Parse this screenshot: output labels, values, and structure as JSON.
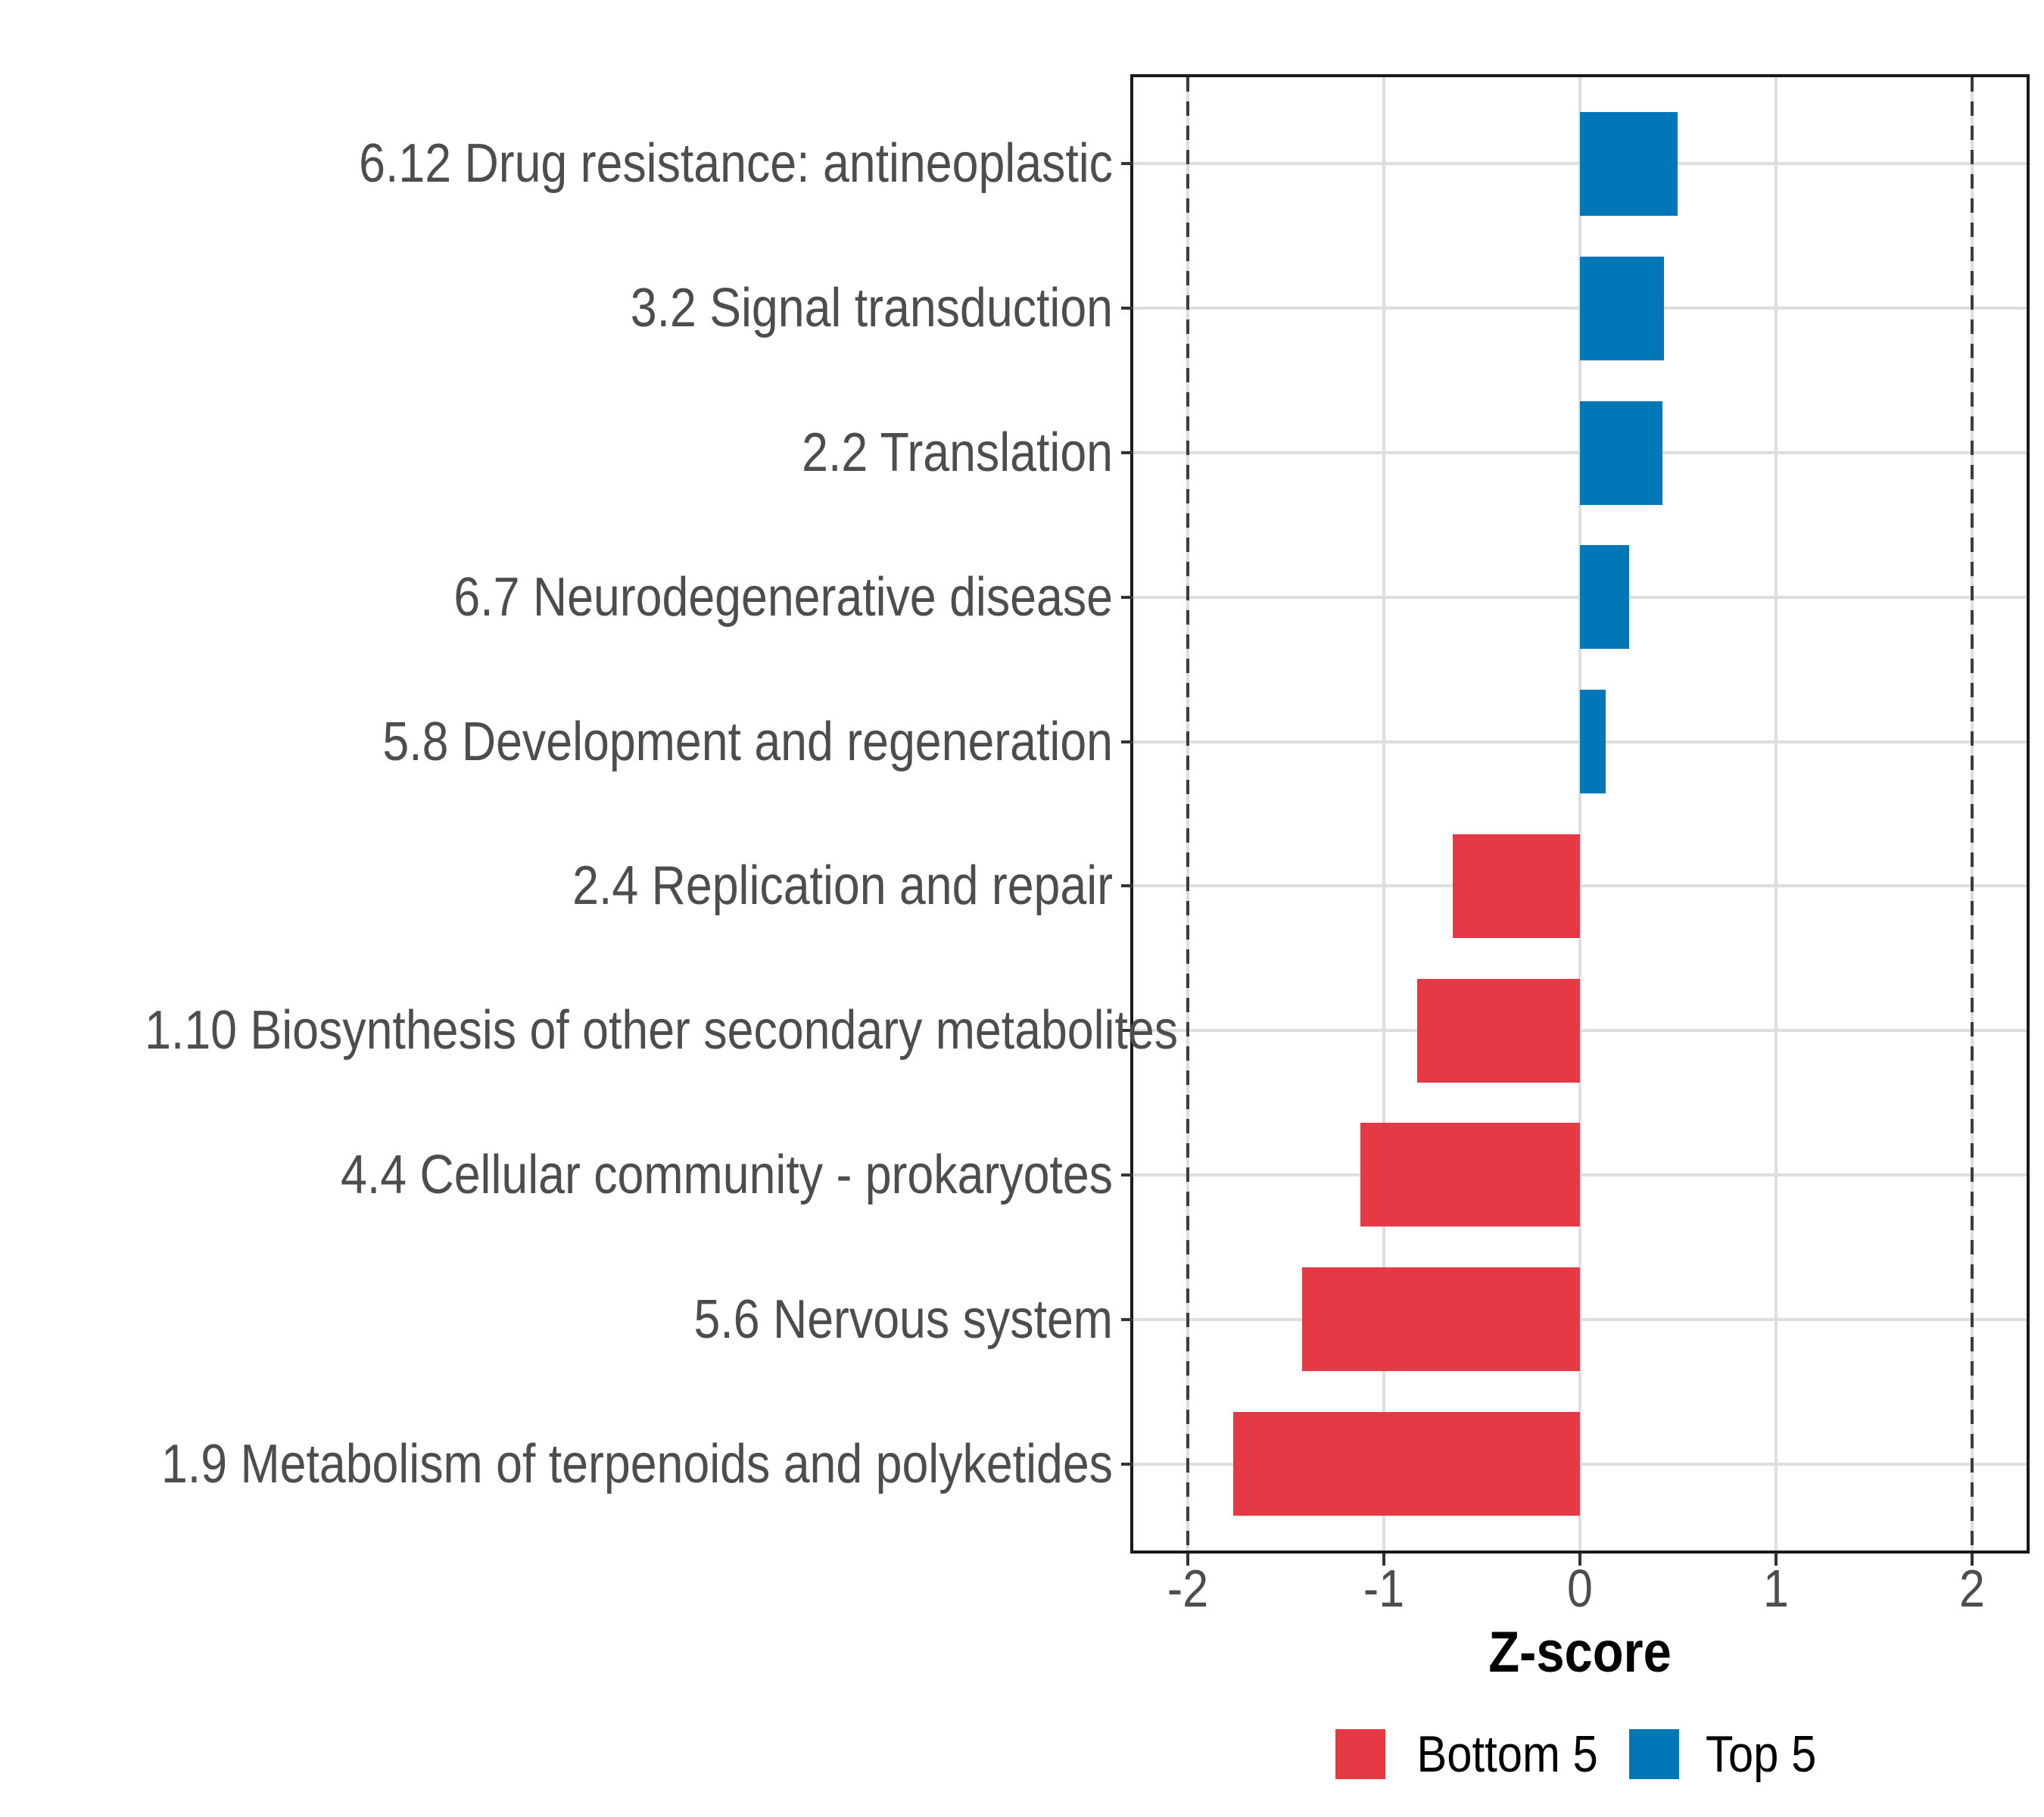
{
  "chart_data": {
    "type": "bar",
    "orientation": "horizontal",
    "xlabel": "Z-score",
    "ylabel": "",
    "categories": [
      "6.12 Drug resistance: antineoplastic",
      "3.2 Signal transduction",
      "2.2 Translation",
      "6.7 Neurodegenerative disease",
      "5.8 Development and regeneration",
      "2.4 Replication and repair",
      "1.10 Biosynthesis of other secondary metabolites",
      "4.4 Cellular community - prokaryotes",
      "5.6 Nervous system",
      "1.9 Metabolism of terpenoids and polyketides"
    ],
    "values": [
      0.5,
      0.43,
      0.42,
      0.25,
      0.13,
      -0.65,
      -0.83,
      -1.12,
      -1.42,
      -1.77
    ],
    "groups": [
      "Top 5",
      "Top 5",
      "Top 5",
      "Top 5",
      "Top 5",
      "Bottom 5",
      "Bottom 5",
      "Bottom 5",
      "Bottom 5",
      "Bottom 5"
    ],
    "colors": {
      "Top 5": "#0077B6",
      "Bottom 5": "#E63946"
    },
    "x_ticks": [
      -2,
      -1,
      0,
      1,
      2
    ],
    "x_tick_labels": [
      "-2",
      "-1",
      "0",
      "1",
      "2"
    ],
    "xlim": [
      -2.28,
      2.28
    ],
    "reference_lines": [
      -2,
      2
    ],
    "grid": true,
    "legend_position": "bottom",
    "legend": [
      {
        "label": "Bottom 5",
        "color": "#E63946"
      },
      {
        "label": "Top 5",
        "color": "#0077B6"
      }
    ]
  }
}
